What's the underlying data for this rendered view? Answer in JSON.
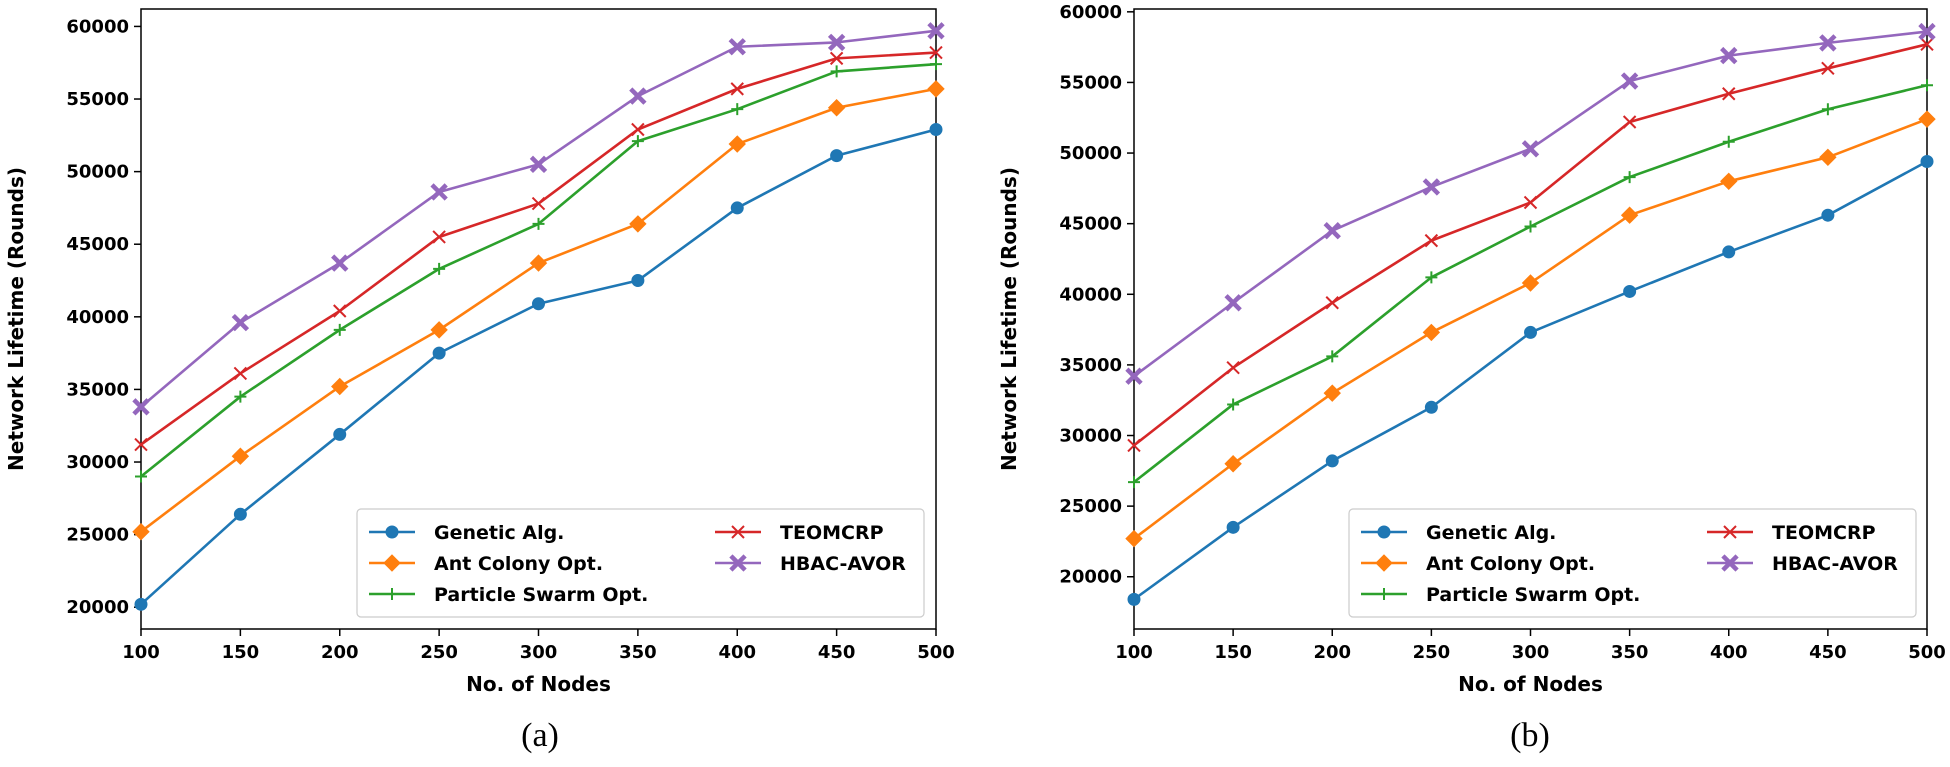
{
  "chart_data": [
    {
      "type": "line",
      "caption": "(a)",
      "title": "",
      "xlabel": "No. of Nodes",
      "ylabel": "Network Lifetime (Rounds)",
      "xlim": [
        100,
        500
      ],
      "ylim": [
        18500,
        61200
      ],
      "xticks": [
        100,
        150,
        200,
        250,
        300,
        350,
        400,
        450,
        500
      ],
      "yticks": [
        20000,
        25000,
        30000,
        35000,
        40000,
        45000,
        50000,
        55000,
        60000
      ],
      "legend_position": "lower-right",
      "grid": false,
      "x": [
        100,
        150,
        200,
        250,
        300,
        350,
        400,
        450,
        500
      ],
      "series": [
        {
          "name": "Genetic Alg.",
          "color": "#1f77b4",
          "marker": "circle",
          "values": [
            20200,
            26400,
            31900,
            37500,
            40900,
            42500,
            47500,
            51100,
            52900
          ]
        },
        {
          "name": "Ant Colony Opt.",
          "color": "#ff7f0e",
          "marker": "diamond",
          "values": [
            25200,
            30400,
            35200,
            39100,
            43700,
            46400,
            51900,
            54400,
            55700
          ]
        },
        {
          "name": "Particle Swarm Opt.",
          "color": "#2ca02c",
          "marker": "plus",
          "values": [
            29000,
            34500,
            39100,
            43300,
            46400,
            52100,
            54300,
            56900,
            57400
          ]
        },
        {
          "name": "TEOMCRP",
          "color": "#d62728",
          "marker": "x",
          "values": [
            31200,
            36100,
            40400,
            45500,
            47800,
            52900,
            55700,
            57800,
            58200
          ]
        },
        {
          "name": "HBAC-AVOR",
          "color": "#9467bd",
          "marker": "thick-x",
          "values": [
            33800,
            39600,
            43700,
            48600,
            50500,
            55200,
            58600,
            58900,
            59700
          ]
        }
      ]
    },
    {
      "type": "line",
      "caption": "(b)",
      "title": "",
      "xlabel": "No. of Nodes",
      "ylabel": "Network Lifetime (Rounds)",
      "xlim": [
        100,
        500
      ],
      "ylim": [
        16300,
        60200
      ],
      "xticks": [
        100,
        150,
        200,
        250,
        300,
        350,
        400,
        450,
        500
      ],
      "yticks": [
        20000,
        25000,
        30000,
        35000,
        40000,
        45000,
        50000,
        55000,
        60000
      ],
      "legend_position": "lower-right",
      "grid": false,
      "x": [
        100,
        150,
        200,
        250,
        300,
        350,
        400,
        450,
        500
      ],
      "series": [
        {
          "name": "Genetic Alg.",
          "color": "#1f77b4",
          "marker": "circle",
          "values": [
            18400,
            23500,
            28200,
            32000,
            37300,
            40200,
            43000,
            45600,
            49400
          ]
        },
        {
          "name": "Ant Colony Opt.",
          "color": "#ff7f0e",
          "marker": "diamond",
          "values": [
            22700,
            28000,
            33000,
            37300,
            40800,
            45600,
            48000,
            49700,
            52400
          ]
        },
        {
          "name": "Particle Swarm Opt.",
          "color": "#2ca02c",
          "marker": "plus",
          "values": [
            26700,
            32200,
            35600,
            41200,
            44800,
            48300,
            50800,
            53100,
            54800
          ]
        },
        {
          "name": "TEOMCRP",
          "color": "#d62728",
          "marker": "x",
          "values": [
            29300,
            34800,
            39400,
            43800,
            46500,
            52200,
            54200,
            56000,
            57700
          ]
        },
        {
          "name": "HBAC-AVOR",
          "color": "#9467bd",
          "marker": "thick-x",
          "values": [
            34200,
            39400,
            44500,
            47600,
            50300,
            55100,
            56900,
            57800,
            58600
          ]
        }
      ]
    }
  ]
}
